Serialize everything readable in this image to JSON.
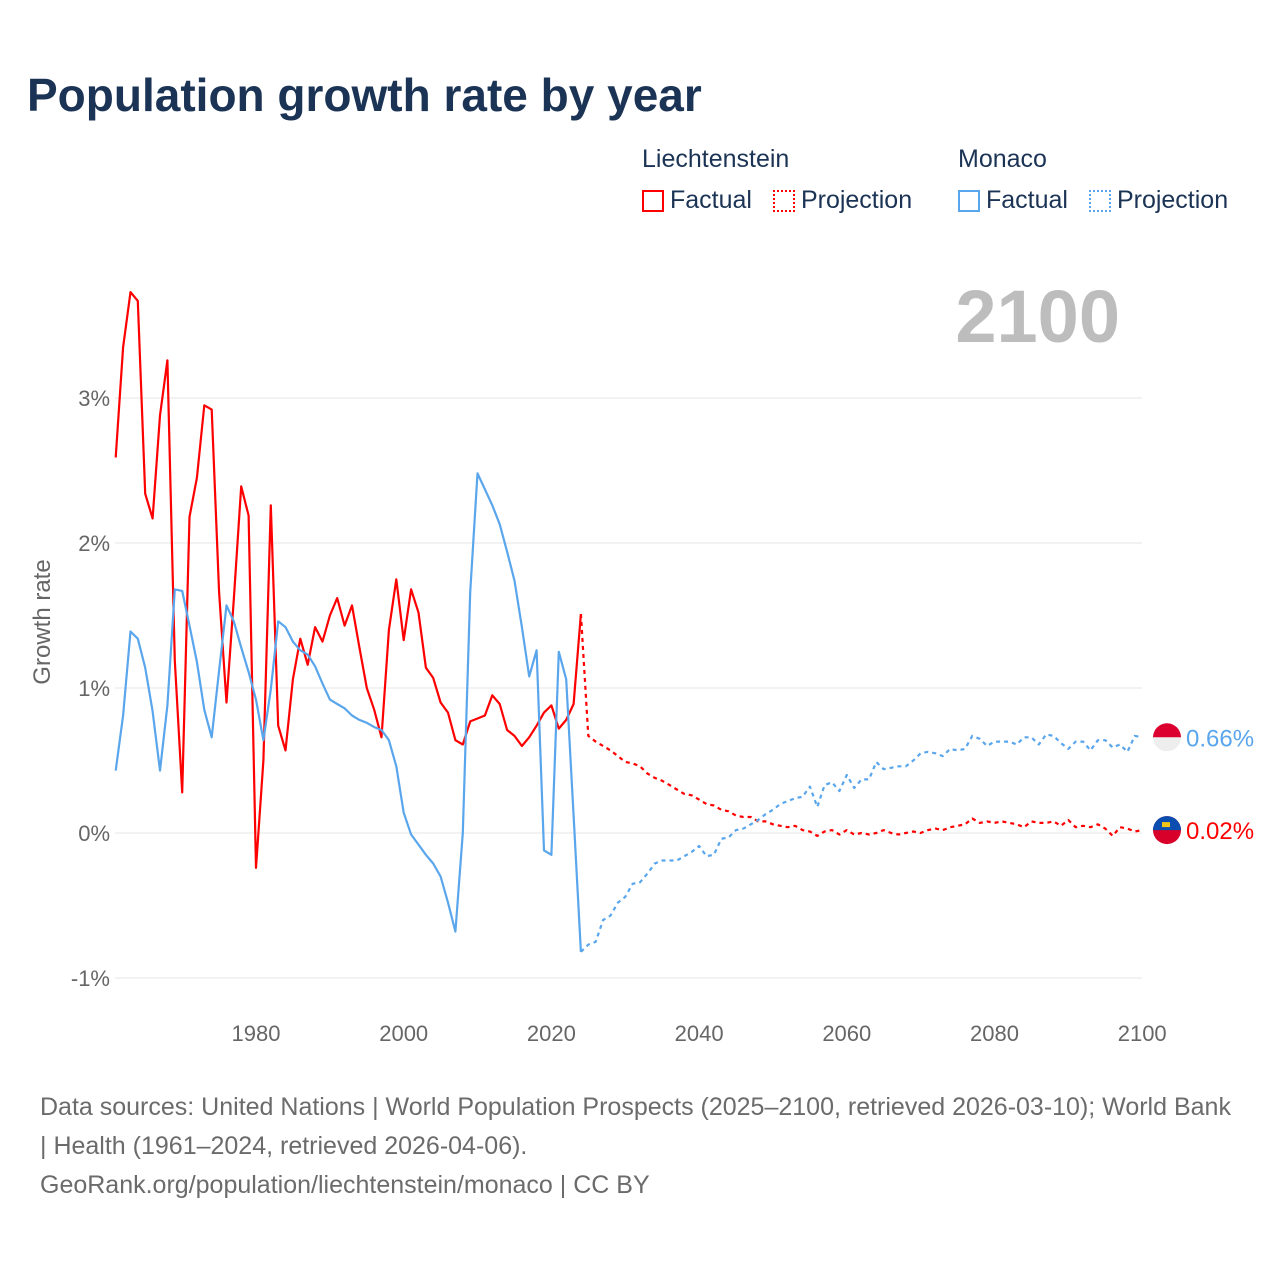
{
  "title": "Population growth rate by year",
  "legend": {
    "groups": [
      {
        "name": "Liechtenstein",
        "color": "#ff0000",
        "items": [
          "Factual",
          "Projection"
        ]
      },
      {
        "name": "Monaco",
        "color": "#5aa6ec",
        "items": [
          "Factual",
          "Projection"
        ]
      }
    ]
  },
  "year_display": "2100",
  "sources": {
    "line1": "Data sources: United Nations | World Population Prospects (2025–2100, retrieved 2026-03-10); World Bank | Health (1961–2024, retrieved 2026-04-06).",
    "line2": "GeoRank.org/population/liechtenstein/monaco | CC BY"
  },
  "chart_data": {
    "type": "line",
    "title": "Population growth rate by year",
    "xlabel": "",
    "ylabel": "Growth rate",
    "xlim": [
      1961,
      2100
    ],
    "ylim": [
      -1.2,
      3.9
    ],
    "x_ticks": [
      1980,
      2000,
      2020,
      2040,
      2060,
      2080,
      2100
    ],
    "x_tick_labels": [
      "1980",
      "2000",
      "2020",
      "2040",
      "2060",
      "2080",
      "2100"
    ],
    "y_ticks": [
      -1,
      0,
      1,
      2,
      3
    ],
    "y_tick_labels": [
      "-1%",
      "0%",
      "1%",
      "2%",
      "3%"
    ],
    "grid": true,
    "end_labels": {
      "Monaco": "0.66%",
      "Liechtenstein": "0.02%"
    },
    "series": [
      {
        "name": "Liechtenstein Factual",
        "color": "#ff0000",
        "dashed": false,
        "x_start": 1961,
        "values": [
          2.59,
          3.35,
          3.73,
          3.67,
          2.34,
          2.17,
          2.88,
          3.26,
          1.19,
          0.28,
          2.18,
          2.45,
          2.95,
          2.92,
          1.66,
          0.9,
          1.61,
          2.39,
          2.19,
          -0.24,
          0.5,
          2.26,
          0.74,
          0.57,
          1.06,
          1.34,
          1.16,
          1.42,
          1.32,
          1.5,
          1.62,
          1.43,
          1.57,
          1.28,
          1.0,
          0.85,
          0.66,
          1.4,
          1.75,
          1.33,
          1.68,
          1.52,
          1.14,
          1.07,
          0.9,
          0.83,
          0.64,
          0.61,
          0.77,
          0.79,
          0.81,
          0.95,
          0.89,
          0.71,
          0.67,
          0.6,
          0.66,
          0.74,
          0.83,
          0.88,
          0.72,
          0.78,
          0.89,
          1.51
        ]
      },
      {
        "name": "Liechtenstein Projection",
        "color": "#ff0000",
        "dashed": true,
        "x_start": 2024,
        "values": [
          1.51,
          0.67,
          0.63,
          0.6,
          0.57,
          0.53,
          0.49,
          0.48,
          0.46,
          0.41,
          0.38,
          0.36,
          0.33,
          0.3,
          0.27,
          0.26,
          0.23,
          0.2,
          0.19,
          0.16,
          0.15,
          0.12,
          0.11,
          0.11,
          0.08,
          0.08,
          0.06,
          0.05,
          0.04,
          0.05,
          0.02,
          0.01,
          -0.02,
          0.01,
          0.02,
          -0.01,
          0.02,
          -0.01,
          0.0,
          -0.01,
          0.0,
          0.02,
          0.0,
          -0.01,
          0.0,
          0.01,
          0.0,
          0.02,
          0.03,
          0.02,
          0.04,
          0.05,
          0.06,
          0.1,
          0.07,
          0.08,
          0.07,
          0.08,
          0.07,
          0.06,
          0.04,
          0.08,
          0.07,
          0.07,
          0.08,
          0.05,
          0.09,
          0.04,
          0.05,
          0.04,
          0.06,
          0.03,
          -0.02,
          0.04,
          0.03,
          0.01,
          0.02
        ]
      },
      {
        "name": "Monaco Factual",
        "color": "#5aa6ec",
        "dashed": false,
        "x_start": 1961,
        "values": [
          0.43,
          0.81,
          1.39,
          1.34,
          1.14,
          0.84,
          0.43,
          0.88,
          1.68,
          1.67,
          1.43,
          1.18,
          0.85,
          0.66,
          1.12,
          1.57,
          1.46,
          1.28,
          1.11,
          0.92,
          0.64,
          0.99,
          1.46,
          1.42,
          1.32,
          1.26,
          1.23,
          1.15,
          1.03,
          0.92,
          0.89,
          0.86,
          0.81,
          0.78,
          0.76,
          0.73,
          0.71,
          0.64,
          0.46,
          0.14,
          -0.01,
          -0.08,
          -0.15,
          -0.21,
          -0.3,
          -0.48,
          -0.68,
          0.0,
          1.66,
          2.48,
          2.37,
          2.26,
          2.13,
          1.94,
          1.74,
          1.42,
          1.08,
          1.26,
          -0.12,
          -0.15,
          1.25,
          1.06,
          0.12,
          -0.82
        ]
      },
      {
        "name": "Monaco Projection",
        "color": "#5aa6ec",
        "dashed": true,
        "x_start": 2024,
        "values": [
          -0.82,
          -0.77,
          -0.75,
          -0.6,
          -0.57,
          -0.48,
          -0.44,
          -0.35,
          -0.34,
          -0.28,
          -0.21,
          -0.19,
          -0.19,
          -0.19,
          -0.16,
          -0.13,
          -0.09,
          -0.16,
          -0.15,
          -0.04,
          -0.03,
          0.02,
          0.03,
          0.06,
          0.09,
          0.13,
          0.16,
          0.2,
          0.22,
          0.24,
          0.25,
          0.32,
          0.18,
          0.33,
          0.35,
          0.29,
          0.4,
          0.31,
          0.37,
          0.37,
          0.49,
          0.44,
          0.45,
          0.46,
          0.46,
          0.5,
          0.55,
          0.56,
          0.55,
          0.53,
          0.58,
          0.57,
          0.58,
          0.67,
          0.65,
          0.6,
          0.63,
          0.63,
          0.63,
          0.61,
          0.66,
          0.66,
          0.61,
          0.68,
          0.67,
          0.62,
          0.58,
          0.63,
          0.63,
          0.57,
          0.64,
          0.64,
          0.59,
          0.61,
          0.56,
          0.67,
          0.66
        ]
      }
    ]
  }
}
